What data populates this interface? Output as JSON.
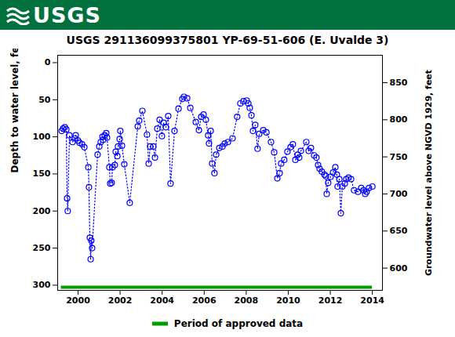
{
  "header": {
    "logo": "USGS"
  },
  "chart_data": {
    "type": "scatter",
    "title": "USGS 291136099375801 YP-69-51-606 (E. Uvalde 3)",
    "y_label": "Depth to water level, feet below land surface",
    "y2_label": "Groundwater level above NGVD 1929, feet",
    "color": "#0000ff",
    "marker": "circle",
    "line_style": "dotted",
    "legend": "bottom",
    "xlim": [
      1999.03,
      2014.48
    ],
    "xticks": [
      2000,
      2002,
      2004,
      2006,
      2008,
      2010,
      2012,
      2014
    ],
    "ylim": [
      -10,
      307
    ],
    "yticks": [
      0,
      50,
      100,
      150,
      200,
      250,
      300
    ],
    "y2lim": [
      570,
      887
    ],
    "y2ticks": [
      600,
      650,
      700,
      750,
      800,
      850
    ],
    "x": [
      1999.22,
      1999.29,
      1999.37,
      1999.44,
      1999.48,
      1999.51,
      1999.59,
      1999.74,
      1999.85,
      1999.89,
      2000.0,
      2000.07,
      2000.19,
      2000.3,
      2000.49,
      2000.52,
      2000.56,
      2000.6,
      2000.63,
      2000.67,
      2000.93,
      2001.01,
      2001.08,
      2001.16,
      2001.19,
      2001.27,
      2001.34,
      2001.38,
      2001.49,
      2001.53,
      2001.6,
      2001.64,
      2001.75,
      2001.79,
      2001.87,
      2001.9,
      2001.98,
      2002.01,
      2002.09,
      2002.2,
      2002.46,
      2002.84,
      2002.91,
      2003.06,
      2003.28,
      2003.36,
      2003.43,
      2003.58,
      2003.66,
      2003.77,
      2003.88,
      2003.99,
      2004.07,
      2004.18,
      2004.29,
      2004.4,
      2004.59,
      2004.78,
      2004.96,
      2005.04,
      2005.19,
      2005.34,
      2005.6,
      2005.75,
      2005.86,
      2005.97,
      2006.08,
      2006.19,
      2006.23,
      2006.31,
      2006.38,
      2006.49,
      2006.57,
      2006.72,
      2006.87,
      2006.98,
      2007.13,
      2007.35,
      2007.57,
      2007.72,
      2007.87,
      2008.02,
      2008.1,
      2008.17,
      2008.25,
      2008.32,
      2008.43,
      2008.54,
      2008.62,
      2008.81,
      2008.96,
      2009.18,
      2009.33,
      2009.48,
      2009.59,
      2009.66,
      2009.81,
      2009.96,
      2010.11,
      2010.22,
      2010.34,
      2010.45,
      2010.52,
      2010.6,
      2010.86,
      2010.97,
      2011.08,
      2011.23,
      2011.34,
      2011.42,
      2011.49,
      2011.6,
      2011.72,
      2011.79,
      2011.83,
      2011.9,
      2012.01,
      2012.13,
      2012.24,
      2012.31,
      2012.35,
      2012.43,
      2012.5,
      2012.57,
      2012.69,
      2012.76,
      2012.87,
      2012.99,
      2013.13,
      2013.32,
      2013.47,
      2013.58,
      2013.66,
      2013.73,
      2013.84,
      2014.0
    ],
    "values": [
      92,
      89,
      87,
      90,
      183,
      200,
      98,
      107,
      102,
      98,
      105,
      108,
      110,
      114,
      141,
      168,
      236,
      265,
      240,
      250,
      124,
      113,
      107,
      100,
      104,
      98,
      95,
      101,
      141,
      163,
      162,
      141,
      138,
      120,
      126,
      113,
      103,
      92,
      112,
      137,
      189,
      86,
      78,
      65,
      97,
      136,
      113,
      113,
      128,
      89,
      77,
      99,
      81,
      87,
      72,
      163,
      92,
      62,
      49,
      46,
      48,
      61,
      80,
      91,
      73,
      70,
      77,
      98,
      109,
      92,
      136,
      149,
      124,
      115,
      113,
      109,
      107,
      102,
      73,
      55,
      52,
      51,
      55,
      61,
      71,
      92,
      84,
      116,
      96,
      91,
      94,
      107,
      121,
      156,
      149,
      136,
      131,
      120,
      114,
      110,
      131,
      124,
      128,
      119,
      107,
      119,
      115,
      125,
      128,
      138,
      143,
      147,
      151,
      153,
      177,
      162,
      154,
      148,
      141,
      151,
      167,
      157,
      203,
      167,
      163,
      157,
      155,
      157,
      172,
      174,
      169,
      172,
      177,
      174,
      169,
      167
    ],
    "approved_period": {
      "name": "Period of approved data",
      "start": 1999.2,
      "end": 2014.0,
      "color": "#00a000"
    }
  }
}
